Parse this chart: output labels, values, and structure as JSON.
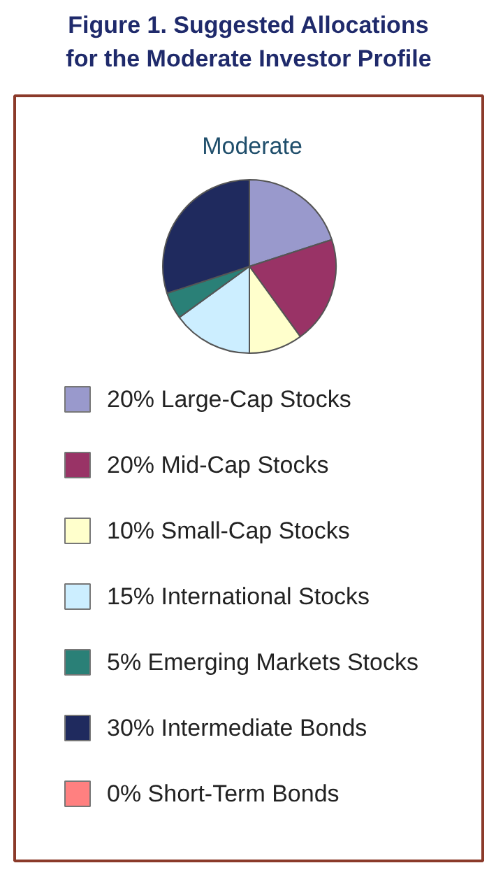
{
  "chart_data": {
    "type": "pie",
    "title": "Figure 1. Suggested Allocations for the Moderate Investor Profile",
    "subtitle": "Moderate",
    "categories": [
      "Large-Cap Stocks",
      "Mid-Cap Stocks",
      "Small-Cap Stocks",
      "International Stocks",
      "Emerging Markets Stocks",
      "Intermediate Bonds",
      "Short-Term Bonds"
    ],
    "values": [
      20,
      20,
      10,
      15,
      5,
      30,
      0
    ],
    "value_labels": [
      "20%",
      "20%",
      "10%",
      "15%",
      "5%",
      "30%",
      "0%"
    ],
    "colors": [
      "#9999cc",
      "#993366",
      "#ffffcc",
      "#cceeff",
      "#2a8077",
      "#1f2a5e",
      "#ff8080"
    ],
    "legend": "bottom"
  }
}
